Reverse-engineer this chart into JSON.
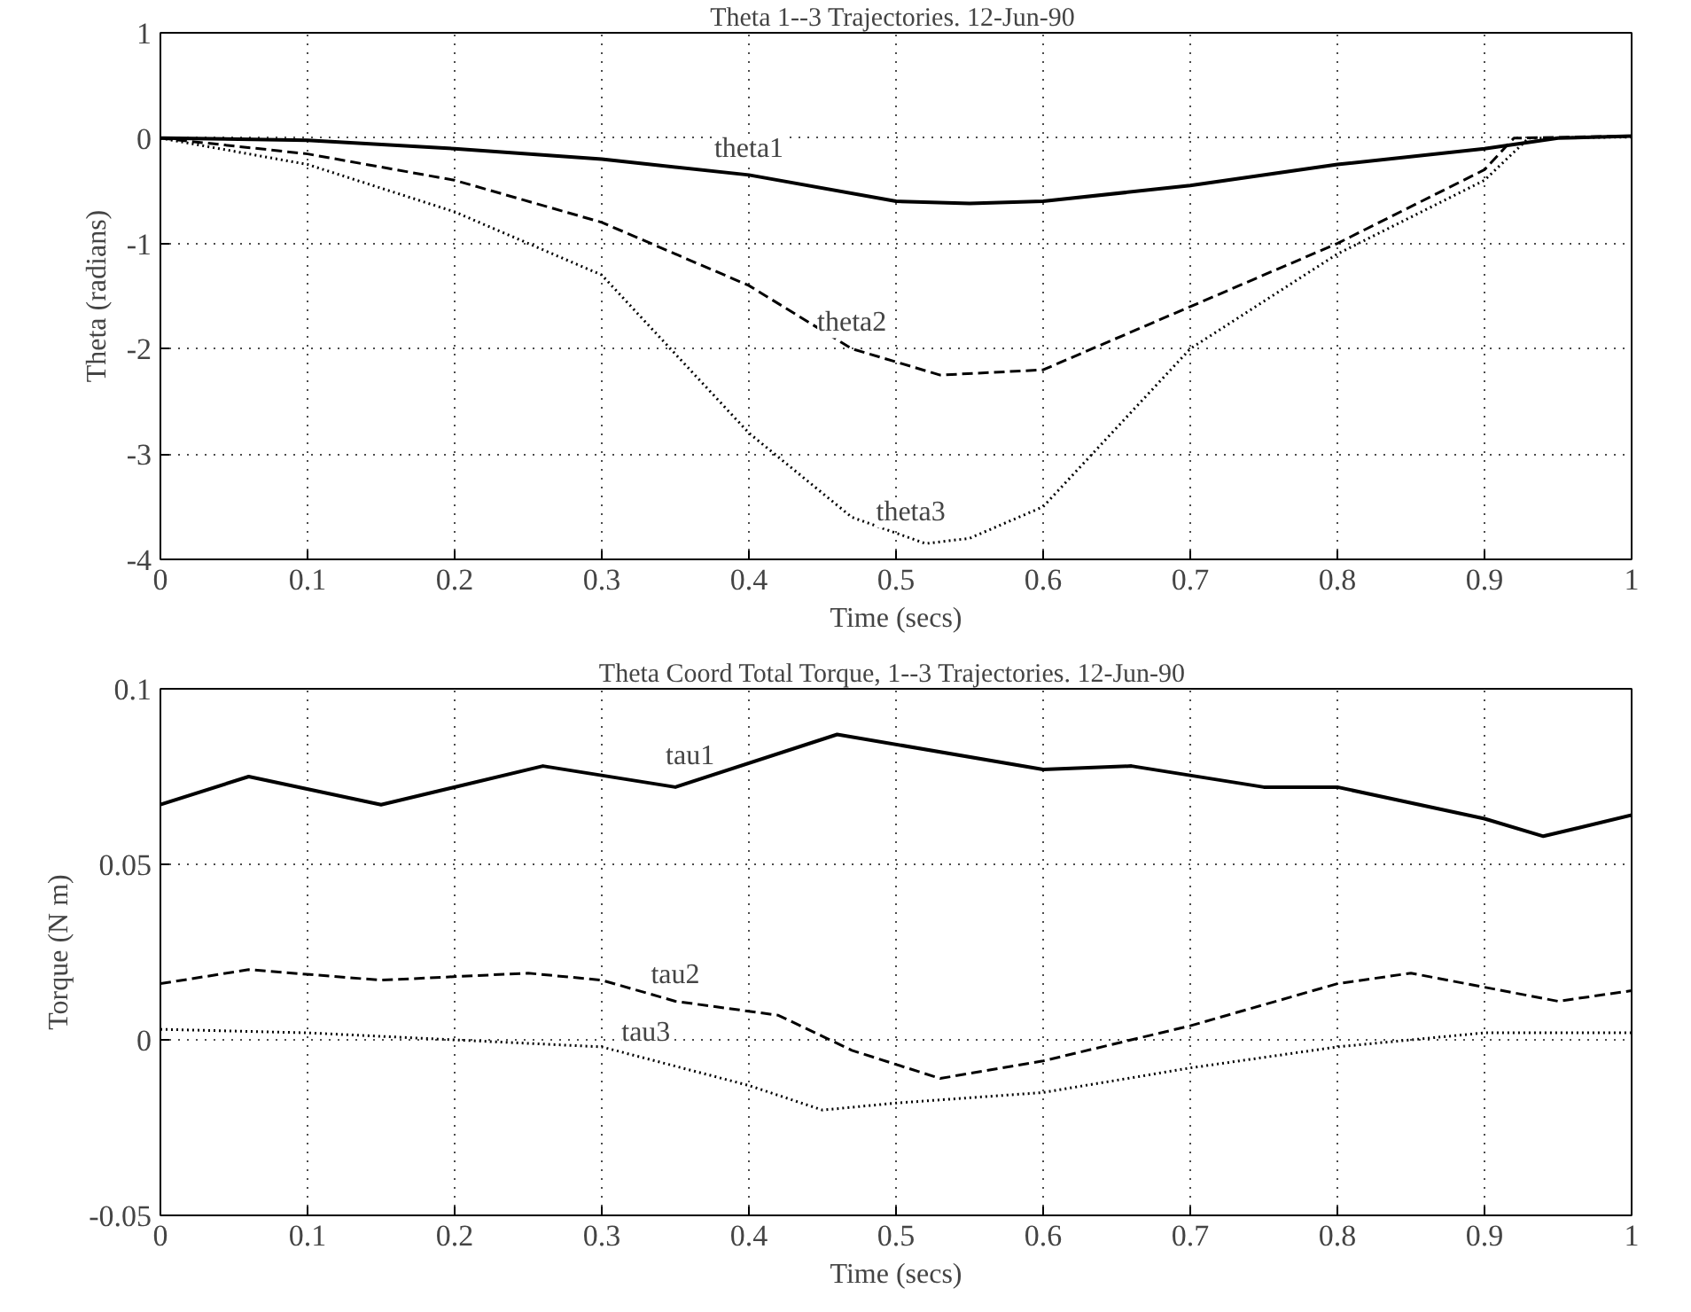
{
  "chart_data": [
    {
      "type": "line",
      "title": "Theta 1--3 Trajectories.  12-Jun-90",
      "xlabel": "Time (secs)",
      "ylabel": "Theta (radians)",
      "xlim": [
        0,
        1
      ],
      "ylim": [
        -4,
        1
      ],
      "xticks": [
        0,
        0.1,
        0.2,
        0.3,
        0.4,
        0.5,
        0.6,
        0.7,
        0.8,
        0.9,
        1
      ],
      "yticks": [
        -4,
        -3,
        -2,
        -1,
        0,
        1
      ],
      "grid": true,
      "series": [
        {
          "name": "theta1",
          "color": "#000000",
          "line_style": "solid",
          "x": [
            0,
            0.1,
            0.2,
            0.3,
            0.4,
            0.5,
            0.55,
            0.6,
            0.7,
            0.8,
            0.9,
            0.95,
            1
          ],
          "values": [
            0,
            -0.02,
            -0.1,
            -0.2,
            -0.35,
            -0.6,
            -0.62,
            -0.6,
            -0.45,
            -0.25,
            -0.1,
            0,
            0.02
          ]
        },
        {
          "name": "theta2",
          "color": "#000000",
          "line_style": "dashed",
          "x": [
            0,
            0.1,
            0.2,
            0.3,
            0.4,
            0.47,
            0.53,
            0.6,
            0.7,
            0.8,
            0.9,
            0.92,
            1
          ],
          "values": [
            0,
            -0.15,
            -0.4,
            -0.8,
            -1.4,
            -2.0,
            -2.25,
            -2.2,
            -1.6,
            -1.0,
            -0.3,
            0,
            0.02
          ]
        },
        {
          "name": "theta3",
          "color": "#000000",
          "line_style": "dotted",
          "x": [
            0,
            0.1,
            0.2,
            0.3,
            0.4,
            0.47,
            0.52,
            0.55,
            0.6,
            0.7,
            0.8,
            0.9,
            0.93,
            1
          ],
          "values": [
            0,
            -0.25,
            -0.7,
            -1.3,
            -2.8,
            -3.6,
            -3.85,
            -3.8,
            -3.5,
            -2.0,
            -1.1,
            -0.4,
            0,
            0.01
          ]
        }
      ]
    },
    {
      "type": "line",
      "title": "Theta Coord Total Torque, 1--3 Trajectories.  12-Jun-90",
      "xlabel": "Time (secs)",
      "ylabel": "Torque (N m)",
      "xlim": [
        0,
        1
      ],
      "ylim": [
        -0.05,
        0.1
      ],
      "xticks": [
        0,
        0.1,
        0.2,
        0.3,
        0.4,
        0.5,
        0.6,
        0.7,
        0.8,
        0.9,
        1
      ],
      "yticks": [
        -0.05,
        0,
        0.05,
        0.1
      ],
      "grid": true,
      "series": [
        {
          "name": "tau1",
          "color": "#000000",
          "line_style": "solid",
          "x": [
            0,
            0.06,
            0.15,
            0.26,
            0.35,
            0.46,
            0.6,
            0.66,
            0.75,
            0.8,
            0.9,
            0.94,
            1
          ],
          "values": [
            0.067,
            0.075,
            0.067,
            0.078,
            0.072,
            0.087,
            0.077,
            0.078,
            0.072,
            0.072,
            0.063,
            0.058,
            0.064
          ]
        },
        {
          "name": "tau2",
          "color": "#000000",
          "line_style": "dashed",
          "x": [
            0,
            0.06,
            0.15,
            0.25,
            0.3,
            0.35,
            0.42,
            0.47,
            0.53,
            0.6,
            0.7,
            0.8,
            0.85,
            0.95,
            1
          ],
          "values": [
            0.016,
            0.02,
            0.017,
            0.019,
            0.017,
            0.011,
            0.007,
            -0.003,
            -0.011,
            -0.006,
            0.004,
            0.016,
            0.019,
            0.011,
            0.014
          ]
        },
        {
          "name": "tau3",
          "color": "#000000",
          "line_style": "dotted",
          "x": [
            0,
            0.1,
            0.2,
            0.3,
            0.4,
            0.45,
            0.5,
            0.6,
            0.7,
            0.8,
            0.9,
            1
          ],
          "values": [
            0.003,
            0.002,
            0,
            -0.002,
            -0.013,
            -0.02,
            -0.018,
            -0.015,
            -0.008,
            -0.002,
            0.002,
            0.002
          ]
        }
      ]
    }
  ]
}
